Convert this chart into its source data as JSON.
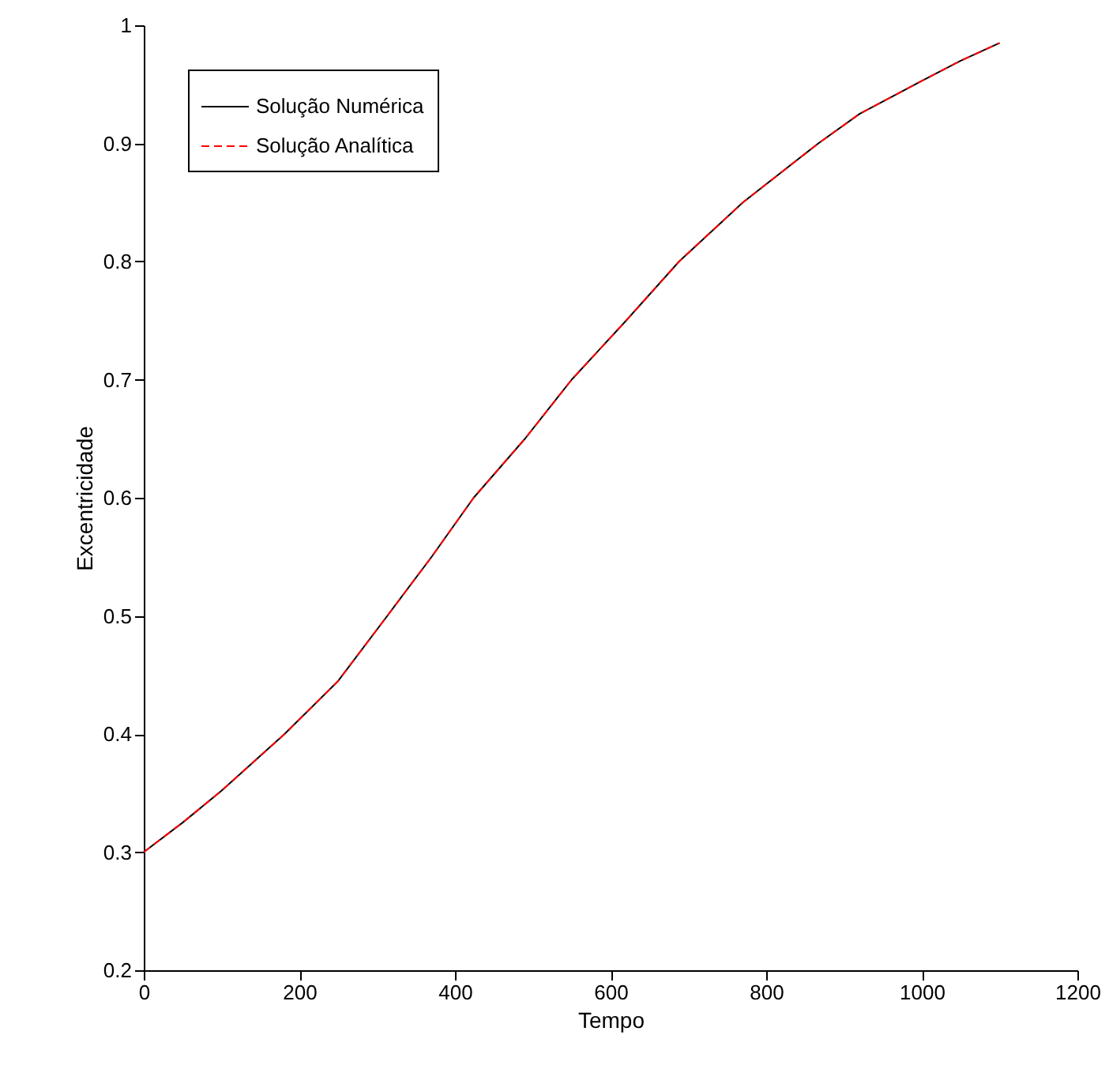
{
  "chart_data": {
    "type": "line",
    "xlabel": "Tempo",
    "ylabel": "Excentricidade",
    "x": [
      0,
      50,
      100,
      181,
      250,
      313,
      370,
      424,
      490,
      550,
      620,
      688,
      770,
      867,
      920,
      1000,
      1050,
      1100
    ],
    "series": [
      {
        "name": "Solução Numérica",
        "color": "#000000",
        "line_style": "solid",
        "values": [
          0.3,
          0.325,
          0.352,
          0.4,
          0.445,
          0.5,
          0.55,
          0.6,
          0.65,
          0.7,
          0.75,
          0.8,
          0.85,
          0.9,
          0.925,
          0.953,
          0.97,
          0.985
        ]
      },
      {
        "name": "Solução Analítica",
        "color": "#ff0000",
        "line_style": "dashed",
        "values": [
          0.3,
          0.325,
          0.352,
          0.4,
          0.445,
          0.5,
          0.55,
          0.6,
          0.65,
          0.7,
          0.75,
          0.8,
          0.85,
          0.9,
          0.925,
          0.953,
          0.97,
          0.985
        ]
      }
    ],
    "xlim": [
      0,
      1200
    ],
    "xticks": [
      0,
      200,
      400,
      600,
      800,
      1000,
      1200
    ],
    "ylim": [
      0.2,
      1
    ],
    "yticks": [
      0.2,
      0.3,
      0.4,
      0.5,
      0.6,
      0.7,
      0.8,
      0.9,
      1
    ],
    "grid": false,
    "legend": "top left",
    "marker": "none"
  }
}
